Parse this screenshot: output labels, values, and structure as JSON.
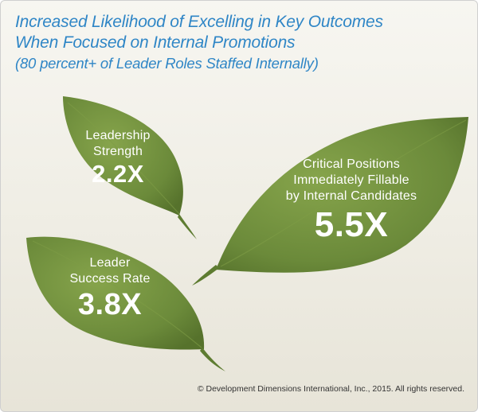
{
  "title": {
    "line1": "Increased Likelihood of Excelling in Key Outcomes",
    "line2": "When Focused on Internal Promotions",
    "subtitle": "(80 percent+ of Leader Roles Staffed Internally)"
  },
  "leaves": [
    {
      "label_lines": [
        "Leadership",
        "Strength"
      ],
      "value": "2.2X"
    },
    {
      "label_lines": [
        "Critical Positions",
        "Immediately Fillable",
        "by Internal Candidates"
      ],
      "value": "5.5X"
    },
    {
      "label_lines": [
        "Leader",
        "Success Rate"
      ],
      "value": "3.8X"
    }
  ],
  "colors": {
    "leaf": "#6b8a3a",
    "leaf_highlight": "#85a34a",
    "title": "#2f86c6"
  },
  "copyright": "© Development Dimensions International, Inc., 2015. All rights reserved."
}
